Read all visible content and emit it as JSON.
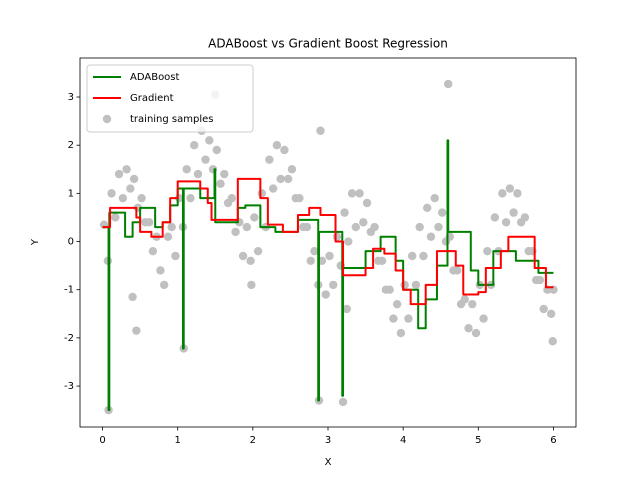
{
  "chart_data": {
    "type": "line",
    "title": "ADABoost vs Gradient Boost Regression",
    "x_label": "X",
    "y_label": "Y",
    "xlim": [
      -0.3,
      6.3
    ],
    "ylim": [
      -3.85,
      3.81
    ],
    "xticks": [
      0,
      1,
      2,
      3,
      4,
      5,
      6
    ],
    "yticks": [
      -3,
      -2,
      -1,
      0,
      1,
      2,
      3
    ],
    "legend": "upper left",
    "series": [
      {
        "name": "ADABoost",
        "type": "line",
        "color": "#008000",
        "x": [
          0,
          0.08,
          0.08,
          0.09,
          0.09,
          0.3,
          0.3,
          0.4,
          0.4,
          0.5,
          0.5,
          0.7,
          0.7,
          0.8,
          0.8,
          0.9,
          0.9,
          1.0,
          1.0,
          1.07,
          1.07,
          1.08,
          1.08,
          1.3,
          1.3,
          1.49,
          1.49,
          1.5,
          1.5,
          1.8,
          1.8,
          1.9,
          1.9,
          2.1,
          2.1,
          2.3,
          2.3,
          2.6,
          2.6,
          2.87,
          2.87,
          2.88,
          2.88,
          3.19,
          3.19,
          3.2,
          3.2,
          3.5,
          3.5,
          3.7,
          3.7,
          3.9,
          3.9,
          4.0,
          4.0,
          4.2,
          4.2,
          4.3,
          4.3,
          4.45,
          4.45,
          4.59,
          4.59,
          4.6,
          4.6,
          4.9,
          4.9,
          5.0,
          5.0,
          5.2,
          5.2,
          5.5,
          5.5,
          5.8,
          5.8,
          6.0
        ],
        "values": [
          0.3,
          0.3,
          -3.5,
          -3.5,
          0.6,
          0.6,
          0.1,
          0.1,
          0.4,
          0.4,
          0.7,
          0.7,
          0.3,
          0.3,
          0.4,
          0.4,
          0.75,
          0.75,
          1.1,
          1.1,
          -2.22,
          -2.22,
          1.1,
          1.1,
          0.9,
          0.9,
          1.5,
          1.5,
          0.4,
          0.4,
          0.7,
          0.7,
          0.75,
          0.75,
          0.3,
          0.3,
          0.2,
          0.2,
          0.45,
          0.45,
          -3.3,
          -3.3,
          0.2,
          0.2,
          -3.2,
          -3.2,
          -0.55,
          -0.55,
          -0.2,
          -0.2,
          0.1,
          0.1,
          -0.4,
          -0.4,
          -1.0,
          -1.0,
          -1.8,
          -1.8,
          -1.2,
          -1.2,
          -0.5,
          -0.5,
          2.1,
          2.1,
          0.2,
          0.2,
          -0.6,
          -0.6,
          -0.9,
          -0.9,
          -0.2,
          -0.2,
          -0.4,
          -0.4,
          -0.65,
          -0.65
        ]
      },
      {
        "name": "Gradient",
        "type": "line",
        "color": "#ff0000",
        "x": [
          0,
          0.1,
          0.1,
          0.45,
          0.45,
          0.5,
          0.5,
          0.65,
          0.65,
          0.8,
          0.8,
          0.9,
          0.9,
          1.0,
          1.0,
          1.3,
          1.3,
          1.4,
          1.4,
          1.45,
          1.45,
          1.8,
          1.8,
          2.1,
          2.1,
          2.2,
          2.2,
          2.4,
          2.4,
          2.6,
          2.6,
          2.75,
          2.75,
          2.9,
          2.9,
          3.1,
          3.1,
          3.2,
          3.2,
          3.5,
          3.5,
          3.6,
          3.6,
          3.75,
          3.75,
          3.9,
          3.9,
          4.0,
          4.0,
          4.1,
          4.1,
          4.3,
          4.3,
          4.45,
          4.45,
          4.7,
          4.7,
          4.8,
          4.8,
          5.0,
          5.0,
          5.1,
          5.1,
          5.3,
          5.3,
          5.4,
          5.4,
          5.75,
          5.75,
          5.9,
          5.9,
          6.0
        ],
        "values": [
          0.3,
          0.3,
          0.7,
          0.7,
          0.5,
          0.5,
          0.2,
          0.2,
          0.1,
          0.1,
          0.4,
          0.4,
          0.9,
          0.9,
          1.25,
          1.25,
          1.1,
          1.1,
          0.8,
          0.8,
          0.45,
          0.45,
          1.3,
          1.3,
          0.9,
          0.9,
          0.35,
          0.35,
          0.2,
          0.2,
          0.55,
          0.55,
          0.7,
          0.7,
          0.55,
          0.55,
          0,
          0,
          -0.7,
          -0.7,
          -0.55,
          -0.55,
          -0.15,
          -0.15,
          -0.25,
          -0.25,
          -0.6,
          -0.6,
          -1.0,
          -1.0,
          -1.3,
          -1.3,
          -0.9,
          -0.9,
          -0.2,
          -0.2,
          -0.5,
          -0.5,
          -1.1,
          -1.1,
          -1.05,
          -1.05,
          -0.55,
          -0.55,
          -0.2,
          -0.2,
          0.1,
          0.1,
          -0.55,
          -0.55,
          -0.95,
          -0.95
        ]
      },
      {
        "name": "training samples",
        "type": "scatter",
        "color": "#c0c0c0",
        "x": [
          0.02,
          0.07,
          0.12,
          0.17,
          0.22,
          0.27,
          0.32,
          0.37,
          0.42,
          0.47,
          0.52,
          0.57,
          0.62,
          0.67,
          0.72,
          0.77,
          0.82,
          0.87,
          0.92,
          0.97,
          1.02,
          1.07,
          1.12,
          1.17,
          1.22,
          1.27,
          1.32,
          1.37,
          1.42,
          1.47,
          1.52,
          1.57,
          1.62,
          1.67,
          1.72,
          1.77,
          1.82,
          1.87,
          1.92,
          1.97,
          2.02,
          2.07,
          2.12,
          2.17,
          2.22,
          2.27,
          2.32,
          2.37,
          2.42,
          2.47,
          2.52,
          2.57,
          2.62,
          2.67,
          2.72,
          2.77,
          2.82,
          2.87,
          2.92,
          2.97,
          3.02,
          3.07,
          3.12,
          3.17,
          3.22,
          3.27,
          3.32,
          3.37,
          3.42,
          3.47,
          3.52,
          3.57,
          3.62,
          3.67,
          3.72,
          3.77,
          3.82,
          3.87,
          3.92,
          3.97,
          4.02,
          4.07,
          4.12,
          4.17,
          4.22,
          4.27,
          4.32,
          4.37,
          4.42,
          4.47,
          4.52,
          4.57,
          4.62,
          4.67,
          4.72,
          4.77,
          4.82,
          4.87,
          4.92,
          4.97,
          5.02,
          5.07,
          5.12,
          5.17,
          5.22,
          5.27,
          5.32,
          5.37,
          5.42,
          5.47,
          5.52,
          5.57,
          5.62,
          5.67,
          5.72,
          5.77,
          5.82,
          5.87,
          5.92,
          5.97,
          6.0,
          5.99,
          0.08,
          1.08,
          2.88,
          3.2,
          4.6,
          1.5,
          2.9,
          0.4,
          0.45,
          3.25,
          1.98
        ],
        "values": [
          0.35,
          -0.4,
          1.0,
          0.5,
          1.4,
          0.9,
          1.5,
          1.1,
          1.3,
          0.7,
          0.9,
          0.4,
          0.4,
          -0.2,
          0.1,
          -0.6,
          -0.9,
          0.1,
          0.3,
          -0.3,
          0.9,
          0.3,
          1.5,
          0.9,
          2.0,
          1.4,
          2.3,
          1.7,
          2.1,
          1.5,
          1.9,
          1.2,
          1.4,
          0.8,
          0.9,
          0.2,
          0.4,
          -0.3,
          0.3,
          -0.4,
          0.5,
          -0.2,
          1.0,
          0.3,
          1.7,
          1.1,
          2.0,
          1.3,
          1.9,
          1.3,
          1.5,
          0.9,
          0.9,
          0.3,
          0.3,
          -0.4,
          -0.2,
          -0.9,
          -0.4,
          -1.1,
          -0.3,
          -0.9,
          0.1,
          -0.5,
          0.6,
          0.0,
          1.0,
          0.3,
          1.0,
          0.4,
          0.8,
          0.2,
          0.3,
          -0.4,
          -0.4,
          -1.0,
          -1.0,
          -1.6,
          -1.3,
          -1.9,
          -0.9,
          -1.6,
          -0.3,
          -0.9,
          0.3,
          -0.3,
          0.7,
          0.1,
          0.9,
          0.3,
          0.6,
          0.0,
          0.1,
          -0.6,
          -0.6,
          -1.3,
          -1.2,
          -1.8,
          -1.3,
          -1.9,
          -0.9,
          -1.6,
          -0.2,
          -0.9,
          0.5,
          -0.2,
          1.0,
          0.4,
          1.1,
          0.6,
          1.0,
          0.4,
          0.5,
          -0.2,
          -0.2,
          -0.8,
          -0.8,
          -1.4,
          -1.0,
          -1.5,
          -1.0,
          -2.07,
          -3.5,
          -2.22,
          -3.3,
          -3.33,
          3.27,
          3.05,
          2.3,
          -1.15,
          -1.85,
          -1.4,
          -0.9
        ]
      }
    ]
  }
}
